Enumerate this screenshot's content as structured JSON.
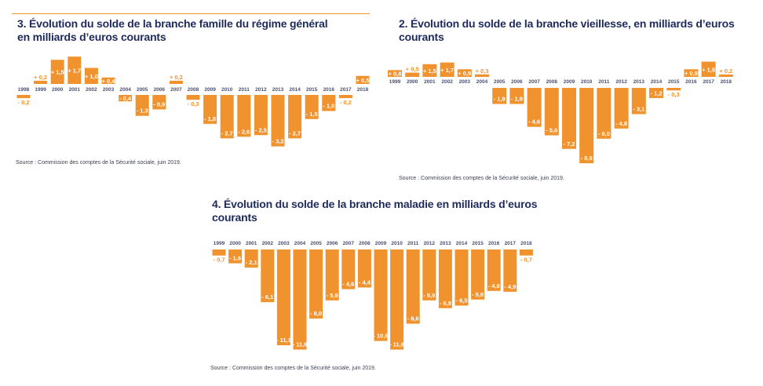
{
  "colors": {
    "bar": "#f0932f",
    "title": "#1e2a5c",
    "year": "#4a5070"
  },
  "chart_data": [
    {
      "type": "bar",
      "id": "famille",
      "title_lines": [
        "3. Évolution du solde de la branche famille du régime général",
        "en milliards d’euros courants"
      ],
      "source": "Source : Commission des comptes de la Sécurité sociale, juin 2019.",
      "categories": [
        "1998",
        "1999",
        "2000",
        "2001",
        "2002",
        "2003",
        "2004",
        "2005",
        "2006",
        "2007",
        "2008",
        "2009",
        "2010",
        "2011",
        "2012",
        "2013",
        "2014",
        "2015",
        "2016",
        "2017",
        "2018"
      ],
      "values": [
        -0.2,
        0.2,
        1.5,
        1.7,
        1.0,
        0.4,
        -0.4,
        -1.3,
        -0.9,
        0.2,
        -0.3,
        -1.8,
        -2.7,
        -2.6,
        -2.5,
        -3.2,
        -2.7,
        -1.5,
        -1.0,
        -0.2,
        0.5
      ],
      "ylabel": "milliards d’euros courants"
    },
    {
      "type": "bar",
      "id": "vieillesse",
      "title_lines": [
        "2. Évolution du solde de la branche vieillesse, en milliards d’euros",
        "courants"
      ],
      "source": "Source : Commission des comptes de la Sécurité sociale, juin 2019.",
      "categories": [
        "1999",
        "2000",
        "2001",
        "2002",
        "2003",
        "2004",
        "2005",
        "2006",
        "2007",
        "2008",
        "2009",
        "2010",
        "2011",
        "2012",
        "2013",
        "2014",
        "2015",
        "2016",
        "2017",
        "2018"
      ],
      "values": [
        0.8,
        0.5,
        1.5,
        1.7,
        0.9,
        0.3,
        -1.9,
        -1.9,
        -4.6,
        -5.6,
        -7.2,
        -8.9,
        -6.0,
        -4.8,
        -3.1,
        -1.2,
        -0.3,
        0.9,
        1.8,
        0.2
      ],
      "ylabel": "milliards d’euros courants"
    },
    {
      "type": "bar",
      "id": "maladie",
      "title_lines": [
        "4. Évolution du solde de la branche maladie en milliards d’euros",
        "courants"
      ],
      "source": "Source : Commission des comptes de la Sécurité sociale, juin 2019.",
      "categories": [
        "1999",
        "2000",
        "2001",
        "2002",
        "2003",
        "2004",
        "2005",
        "2006",
        "2007",
        "2008",
        "2009",
        "2010",
        "2011",
        "2012",
        "2013",
        "2014",
        "2015",
        "2016",
        "2017",
        "2018"
      ],
      "values": [
        -0.7,
        -1.6,
        -2.1,
        -6.1,
        -11.1,
        -11.6,
        -8.0,
        -5.9,
        -4.6,
        -4.4,
        -10.6,
        -11.6,
        -8.6,
        -5.9,
        -6.8,
        -6.5,
        -5.8,
        -4.8,
        -4.9,
        -0.7
      ],
      "ylabel": "milliards d’euros courants"
    }
  ]
}
